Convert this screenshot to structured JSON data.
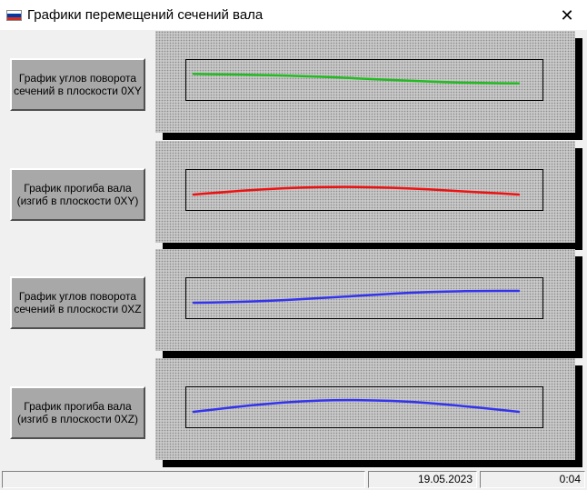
{
  "window": {
    "title": "Графики перемещений сечений вала",
    "close_glyph": "✕",
    "flag_colors": [
      "#ffffff",
      "#0039a6",
      "#d52b1e"
    ]
  },
  "buttons": [
    {
      "label": "График углов поворота сечений в плоскости 0XY"
    },
    {
      "label": "График прогиба вала (изгиб в плоскости 0XY)"
    },
    {
      "label": "График углов поворота сечений в плоскости 0XZ"
    },
    {
      "label": "График прогиба вала (изгиб в плоскости 0XZ)"
    }
  ],
  "plots": [
    {
      "color": "#22bb22",
      "values": [
        0.9,
        0.86,
        0.8,
        0.72,
        0.6,
        0.45,
        0.32,
        0.2,
        0.12,
        0.1
      ]
    },
    {
      "color": "#ee1111",
      "values": [
        0.0,
        0.25,
        0.46,
        0.6,
        0.65,
        0.62,
        0.52,
        0.35,
        0.18,
        0.0
      ]
    },
    {
      "color": "#3333ee",
      "values": [
        0.0,
        0.05,
        0.15,
        0.3,
        0.48,
        0.68,
        0.85,
        0.95,
        1.0,
        1.0
      ]
    },
    {
      "color": "#3333ee",
      "values": [
        0.0,
        0.35,
        0.68,
        0.9,
        1.0,
        0.98,
        0.86,
        0.62,
        0.32,
        0.0
      ]
    }
  ],
  "status": {
    "message": "",
    "date": "19.05.2023",
    "time": "0:04"
  }
}
